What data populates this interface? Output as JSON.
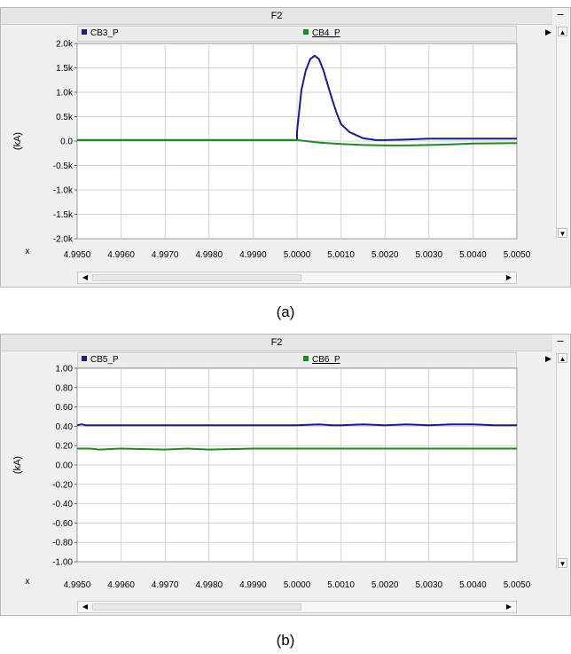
{
  "panels": [
    {
      "title": "F2",
      "caption": "(a)",
      "minimize_label": "–",
      "legend": [
        {
          "name": "CB3_P",
          "color": "#1a1a8c"
        },
        {
          "name": "CB4_P",
          "color": "#1f8a1f"
        }
      ]
    },
    {
      "title": "F2",
      "caption": "(b)",
      "minimize_label": "–",
      "legend": [
        {
          "name": "CB5_P",
          "color": "#1a1a8c"
        },
        {
          "name": "CB6_P",
          "color": "#1f8a1f"
        }
      ]
    }
  ],
  "chart_data": [
    {
      "type": "line",
      "ylabel": "(kA)",
      "xlabel": "x",
      "xlim": [
        4.995,
        5.005
      ],
      "ylim": [
        -2.0,
        2.0
      ],
      "grid": true,
      "x_ticks": [
        "4.9950",
        "4.9960",
        "4.9970",
        "4.9980",
        "4.9990",
        "5.0000",
        "5.0010",
        "5.0020",
        "5.0030",
        "5.0040",
        "5.0050"
      ],
      "y_ticks": [
        "2.0k",
        "1.5k",
        "1.0k",
        "0.5k",
        "0.0",
        "-0.5k",
        "-1.0k",
        "-1.5k",
        "-2.0k"
      ],
      "y_tick_values": [
        2.0,
        1.5,
        1.0,
        0.5,
        0.0,
        -0.5,
        -1.0,
        -1.5,
        -2.0
      ],
      "series": [
        {
          "name": "CB3_P",
          "color": "#1a1a8c",
          "x": [
            4.995,
            5.0,
            5.0,
            5.0001,
            5.0002,
            5.0003,
            5.0004,
            5.0005,
            5.0006,
            5.0007,
            5.0008,
            5.0009,
            5.001,
            5.0012,
            5.0015,
            5.0018,
            5.002,
            5.0025,
            5.003,
            5.004,
            5.005
          ],
          "y": [
            0.02,
            0.02,
            0.2,
            1.05,
            1.45,
            1.68,
            1.75,
            1.68,
            1.45,
            1.15,
            0.85,
            0.58,
            0.35,
            0.18,
            0.06,
            0.02,
            0.02,
            0.03,
            0.05,
            0.05,
            0.05
          ]
        },
        {
          "name": "CB4_P",
          "color": "#1f8a1f",
          "x": [
            4.995,
            5.0,
            5.0005,
            5.001,
            5.0015,
            5.002,
            5.0025,
            5.003,
            5.0035,
            5.004,
            5.005
          ],
          "y": [
            0.02,
            0.02,
            -0.03,
            -0.06,
            -0.08,
            -0.09,
            -0.09,
            -0.08,
            -0.07,
            -0.05,
            -0.04
          ]
        }
      ]
    },
    {
      "type": "line",
      "ylabel": "(kA)",
      "xlabel": "x",
      "xlim": [
        4.995,
        5.005
      ],
      "ylim": [
        -1.0,
        1.0
      ],
      "grid": true,
      "x_ticks": [
        "4.9950",
        "4.9960",
        "4.9970",
        "4.9980",
        "4.9990",
        "5.0000",
        "5.0010",
        "5.0020",
        "5.0030",
        "5.0040",
        "5.0050"
      ],
      "y_ticks": [
        "1.00",
        "0.80",
        "0.60",
        "0.40",
        "0.20",
        "0.00",
        "-0.20",
        "-0.40",
        "-0.60",
        "-0.80",
        "-1.00"
      ],
      "y_tick_values": [
        1.0,
        0.8,
        0.6,
        0.4,
        0.2,
        0.0,
        -0.2,
        -0.4,
        -0.6,
        -0.8,
        -1.0
      ],
      "series": [
        {
          "name": "CB5_P",
          "color": "#1a1a8c",
          "x": [
            4.995,
            4.9951,
            4.9952,
            4.996,
            4.997,
            4.998,
            4.999,
            5.0,
            5.0005,
            5.0008,
            5.001,
            5.0015,
            5.002,
            5.0025,
            5.003,
            5.0035,
            5.004,
            5.0045,
            5.005
          ],
          "y": [
            0.41,
            0.42,
            0.41,
            0.41,
            0.41,
            0.41,
            0.41,
            0.41,
            0.42,
            0.41,
            0.41,
            0.42,
            0.41,
            0.42,
            0.41,
            0.42,
            0.42,
            0.41,
            0.41
          ]
        },
        {
          "name": "CB6_P",
          "color": "#1f8a1f",
          "x": [
            4.995,
            4.9953,
            4.9955,
            4.996,
            4.997,
            4.9975,
            4.998,
            4.999,
            5.0,
            5.001,
            5.002,
            5.003,
            5.004,
            5.005
          ],
          "y": [
            0.17,
            0.17,
            0.16,
            0.17,
            0.16,
            0.17,
            0.16,
            0.17,
            0.17,
            0.17,
            0.17,
            0.17,
            0.17,
            0.17
          ]
        }
      ]
    }
  ]
}
